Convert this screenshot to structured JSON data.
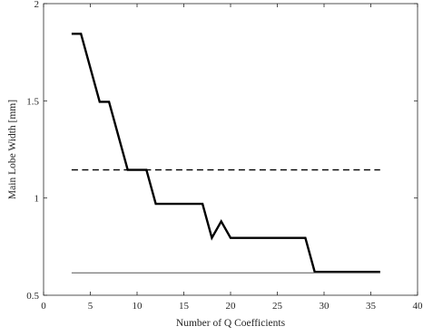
{
  "chart_data": {
    "type": "line",
    "title": "",
    "xlabel": "Number of Q Coefficients",
    "ylabel": "Main Lobe Width [mm]",
    "xlim": [
      0,
      40
    ],
    "ylim": [
      0.5,
      2
    ],
    "xticks": [
      0,
      5,
      10,
      15,
      20,
      25,
      30,
      35,
      40
    ],
    "yticks": [
      0.5,
      1,
      1.5,
      2
    ],
    "xtick_labels": [
      "0",
      "5",
      "10",
      "15",
      "20",
      "25",
      "30",
      "35",
      "40"
    ],
    "ytick_labels": [
      "0.5",
      "1",
      "1.5",
      "2"
    ],
    "grid": false,
    "legend": false,
    "series": [
      {
        "style": "solid-thick",
        "color": "#000000",
        "x": [
          3,
          4,
          6,
          7,
          9,
          11,
          12,
          17,
          18,
          19,
          20,
          28,
          29,
          36
        ],
        "y": [
          1.845,
          1.845,
          1.495,
          1.495,
          1.145,
          1.145,
          0.97,
          0.97,
          0.795,
          0.88,
          0.795,
          0.795,
          0.62,
          0.62
        ]
      },
      {
        "style": "dashed",
        "color": "#000000",
        "x": [
          3,
          36
        ],
        "y": [
          1.145,
          1.145
        ]
      },
      {
        "style": "solid-thin",
        "color": "#555555",
        "x": [
          3,
          36
        ],
        "y": [
          0.615,
          0.615
        ]
      }
    ]
  }
}
